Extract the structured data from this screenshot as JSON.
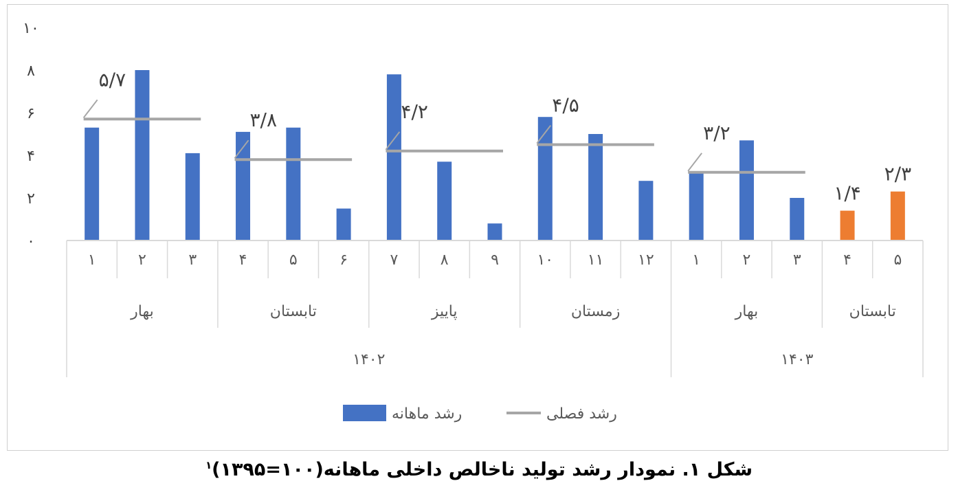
{
  "caption": {
    "text": "شکل ۱. نمودار رشد تولید ناخالص داخلی ماهانه(۱۰۰=۱۳۹۵)",
    "footnote": "۱"
  },
  "colors": {
    "monthly": "#4472c4",
    "highlight": "#ed7d31",
    "seasonal": "#a6a6a6",
    "axis": "#d9d9d9"
  },
  "chart_data": {
    "type": "bar",
    "title": "",
    "ylim": [
      0,
      10
    ],
    "yticks": [
      "۰",
      "۲",
      "۴",
      "۶",
      "۸",
      "۱۰"
    ],
    "ytick_values": [
      0,
      2,
      4,
      6,
      8,
      10
    ],
    "categories": [
      {
        "month": "۱",
        "season": "بهار",
        "year": "۱۴۰۲"
      },
      {
        "month": "۲",
        "season": "بهار",
        "year": "۱۴۰۲"
      },
      {
        "month": "۳",
        "season": "بهار",
        "year": "۱۴۰۲"
      },
      {
        "month": "۴",
        "season": "تابستان",
        "year": "۱۴۰۲"
      },
      {
        "month": "۵",
        "season": "تابستان",
        "year": "۱۴۰۲"
      },
      {
        "month": "۶",
        "season": "تابستان",
        "year": "۱۴۰۲"
      },
      {
        "month": "۷",
        "season": "پاییز",
        "year": "۱۴۰۲"
      },
      {
        "month": "۸",
        "season": "پاییز",
        "year": "۱۴۰۲"
      },
      {
        "month": "۹",
        "season": "پاییز",
        "year": "۱۴۰۲"
      },
      {
        "month": "۱۰",
        "season": "زمستان",
        "year": "۱۴۰۲"
      },
      {
        "month": "۱۱",
        "season": "زمستان",
        "year": "۱۴۰۲"
      },
      {
        "month": "۱۲",
        "season": "زمستان",
        "year": "۱۴۰۲"
      },
      {
        "month": "۱",
        "season": "بهار",
        "year": "۱۴۰۳"
      },
      {
        "month": "۲",
        "season": "بهار",
        "year": "۱۴۰۳"
      },
      {
        "month": "۳",
        "season": "بهار",
        "year": "۱۴۰۳"
      },
      {
        "month": "۴",
        "season": "تابستان",
        "year": "۱۴۰۳"
      },
      {
        "month": "۵",
        "season": "تابستان",
        "year": "۱۴۰۳"
      }
    ],
    "seasons": [
      {
        "label": "بهار",
        "span": 3
      },
      {
        "label": "تابستان",
        "span": 3
      },
      {
        "label": "پاییز",
        "span": 3
      },
      {
        "label": "زمستان",
        "span": 3
      },
      {
        "label": "بهار",
        "span": 3
      },
      {
        "label": "تابستان",
        "span": 2
      }
    ],
    "years": [
      {
        "label": "۱۴۰۲",
        "span": 12
      },
      {
        "label": "۱۴۰۳",
        "span": 5
      }
    ],
    "series": [
      {
        "name": "رشد ماهانه",
        "type": "bar",
        "values": [
          5.3,
          8.0,
          4.1,
          5.1,
          5.3,
          1.5,
          7.8,
          3.7,
          0.8,
          5.8,
          5.0,
          2.8,
          3.2,
          4.7,
          2.0,
          1.4,
          2.3
        ],
        "highlight_indices": [
          15,
          16
        ],
        "highlight_labels": [
          "۱/۴",
          "۲/۳"
        ]
      },
      {
        "name": "رشد فصلی",
        "type": "line-segments",
        "segments": [
          {
            "start": 0,
            "end": 2,
            "value": 5.7,
            "label": "۵/۷"
          },
          {
            "start": 3,
            "end": 5,
            "value": 3.8,
            "label": "۳/۸"
          },
          {
            "start": 6,
            "end": 8,
            "value": 4.2,
            "label": "۴/۲"
          },
          {
            "start": 9,
            "end": 11,
            "value": 4.5,
            "label": "۴/۵"
          },
          {
            "start": 12,
            "end": 14,
            "value": 3.2,
            "label": "۳/۲"
          }
        ]
      }
    ],
    "legend": {
      "position": "bottom",
      "items": [
        {
          "label": "رشد فصلی",
          "type": "line"
        },
        {
          "label": "رشد ماهانه",
          "type": "bar"
        }
      ]
    },
    "grid": false
  }
}
